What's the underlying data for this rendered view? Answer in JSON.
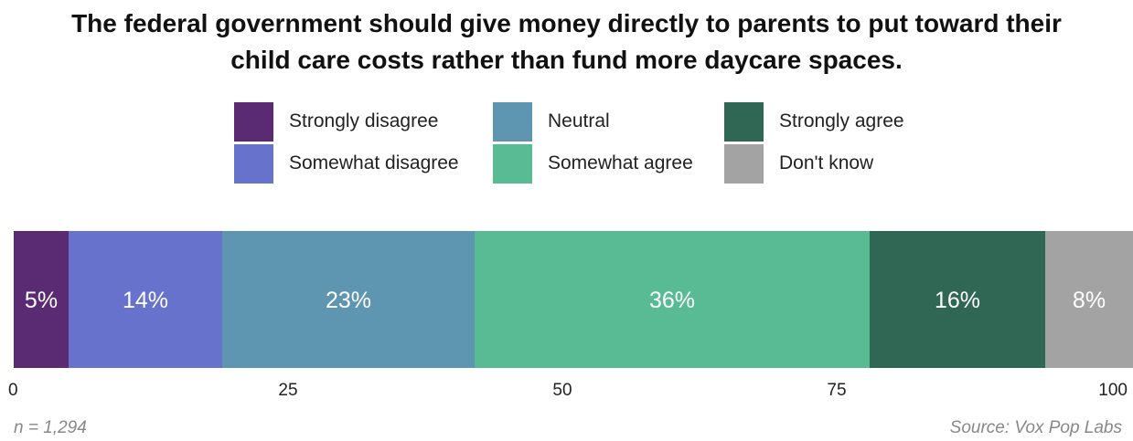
{
  "chart_data": {
    "type": "bar",
    "orientation": "horizontal-stacked-100",
    "title": "The federal government should give money directly to parents to put toward their\nchild care costs rather than fund more daycare spaces.",
    "series": [
      {
        "name": "Strongly disagree",
        "value": 5,
        "label": "5%",
        "color": "#5a2a72"
      },
      {
        "name": "Somewhat disagree",
        "value": 14,
        "label": "14%",
        "color": "#6672cc"
      },
      {
        "name": "Neutral",
        "value": 23,
        "label": "23%",
        "color": "#5e95b0"
      },
      {
        "name": "Somewhat agree",
        "value": 36,
        "label": "36%",
        "color": "#58bb94"
      },
      {
        "name": "Strongly agree",
        "value": 16,
        "label": "16%",
        "color": "#2f6654"
      },
      {
        "name": "Don't know",
        "value": 8,
        "label": "8%",
        "color": "#a3a3a3"
      }
    ],
    "xlim": [
      0,
      100
    ],
    "xticks": [
      "0",
      "25",
      "50",
      "75",
      "100"
    ],
    "grid": false,
    "legend_position": "top"
  },
  "footer": {
    "sample": "n = 1,294",
    "source": "Source: Vox Pop Labs"
  }
}
